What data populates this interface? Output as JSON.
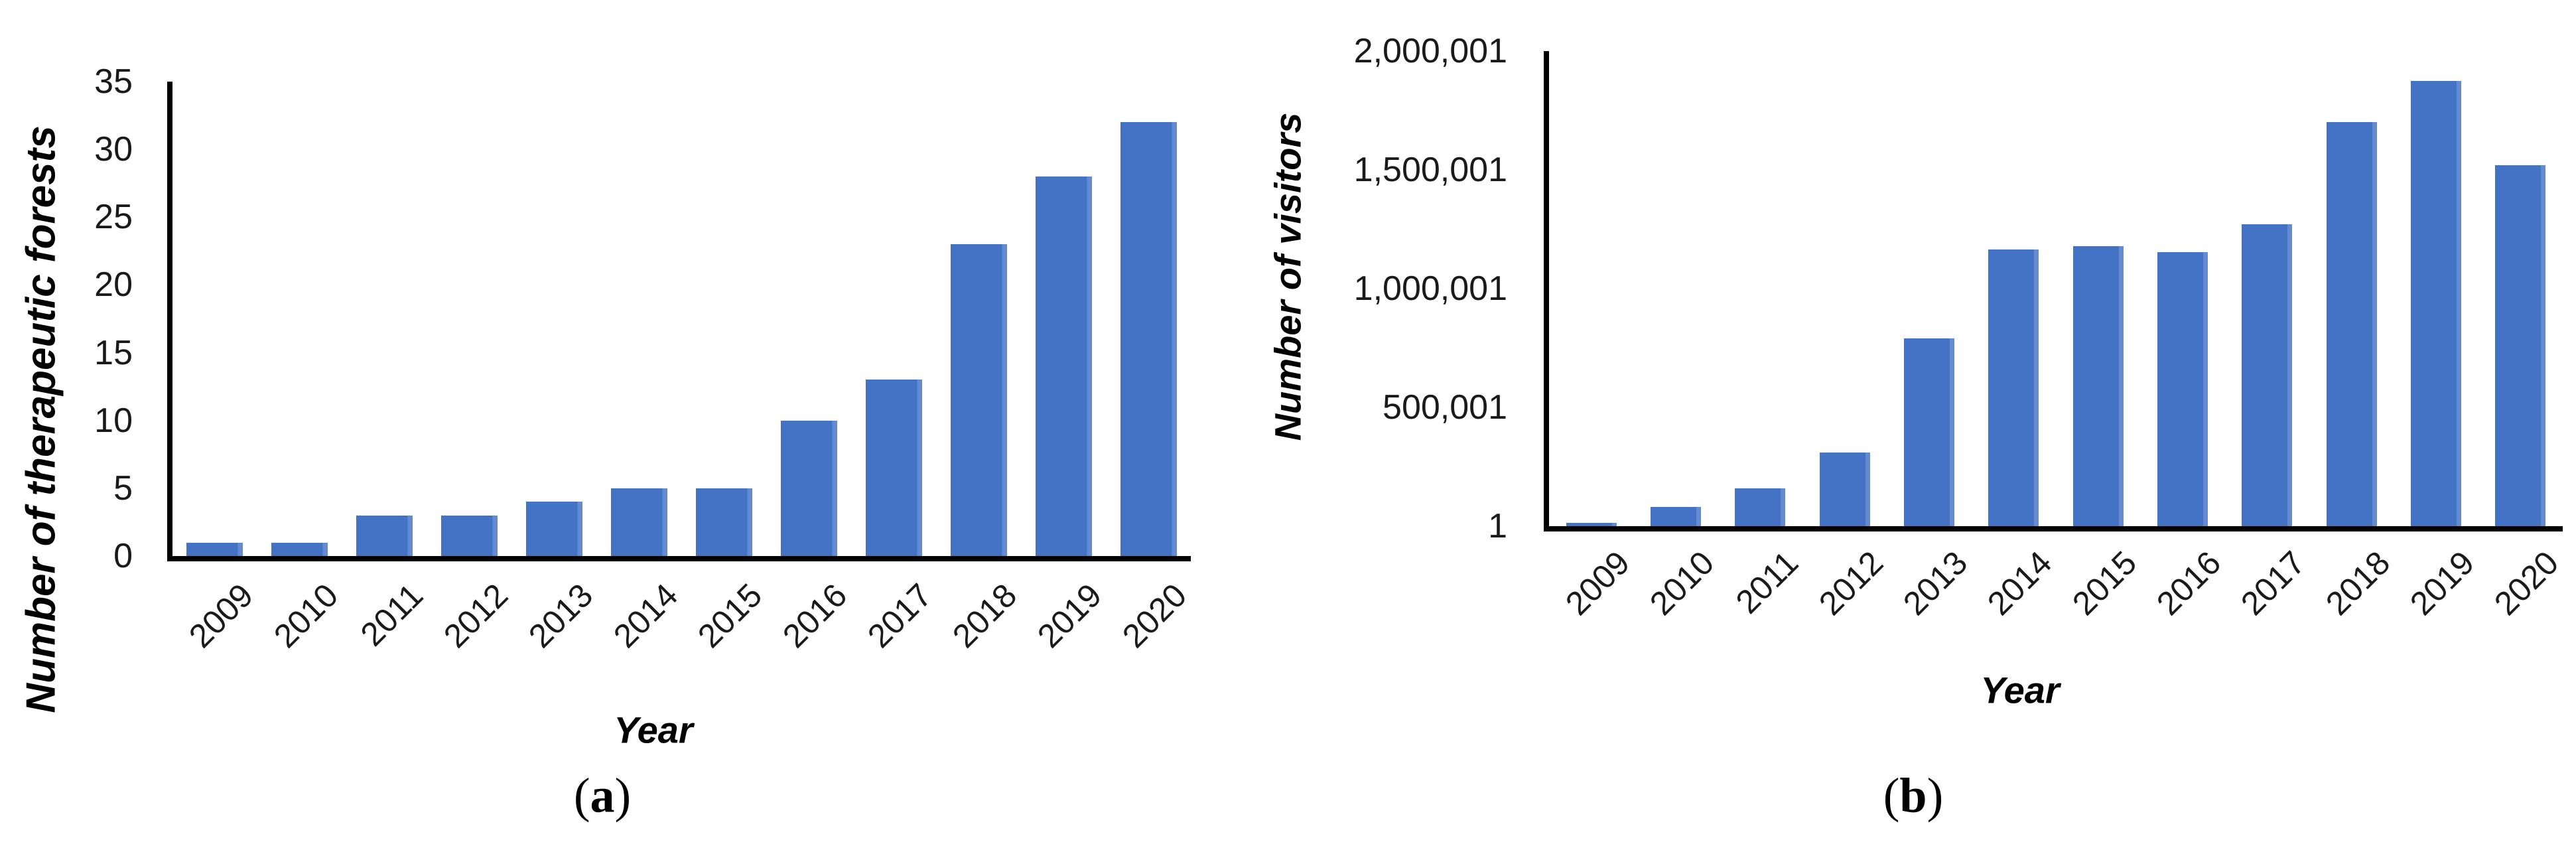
{
  "figure": {
    "captions": [
      {
        "prefix": "(",
        "letter": "a",
        "suffix": ")"
      },
      {
        "prefix": "(",
        "letter": "b",
        "suffix": ")"
      }
    ],
    "bar_color": "#4472C4",
    "axis_color": "#000000"
  },
  "chart_data": [
    {
      "type": "bar",
      "panel": "a",
      "ylabel": "Number of therapeutic forests",
      "xlabel": "Year",
      "categories": [
        "2009",
        "2010",
        "2011",
        "2012",
        "2013",
        "2014",
        "2015",
        "2016",
        "2017",
        "2018",
        "2019",
        "2020"
      ],
      "values": [
        1,
        1,
        3,
        3,
        4,
        5,
        5,
        10,
        13,
        23,
        28,
        32
      ],
      "ylim": [
        0,
        35
      ],
      "yticks": [
        {
          "label": "0",
          "value": 0
        },
        {
          "label": "5",
          "value": 5
        },
        {
          "label": "10",
          "value": 10
        },
        {
          "label": "15",
          "value": 15
        },
        {
          "label": "20",
          "value": 20
        },
        {
          "label": "25",
          "value": 25
        },
        {
          "label": "30",
          "value": 30
        },
        {
          "label": "35",
          "value": 35
        }
      ],
      "grid": false,
      "legend": null,
      "bar_color": "#4472C4"
    },
    {
      "type": "bar",
      "panel": "b",
      "ylabel": "Number of visitors",
      "xlabel": "Year",
      "categories": [
        "2009",
        "2010",
        "2011",
        "2012",
        "2013",
        "2014",
        "2015",
        "2016",
        "2017",
        "2018",
        "2019",
        "2020"
      ],
      "values": [
        15000,
        80000,
        160000,
        310000,
        790000,
        1165000,
        1180000,
        1155000,
        1270000,
        1700000,
        1875000,
        1520000
      ],
      "ylim": [
        0,
        2000000
      ],
      "yticks": [
        {
          "label": "1",
          "value": 0
        },
        {
          "label": "500,001",
          "value": 500000
        },
        {
          "label": "1,000,001",
          "value": 1000000
        },
        {
          "label": "1,500,001",
          "value": 1500000
        },
        {
          "label": "2,000,001",
          "value": 2000000
        }
      ],
      "grid": false,
      "legend": null,
      "bar_color": "#4472C4"
    }
  ]
}
